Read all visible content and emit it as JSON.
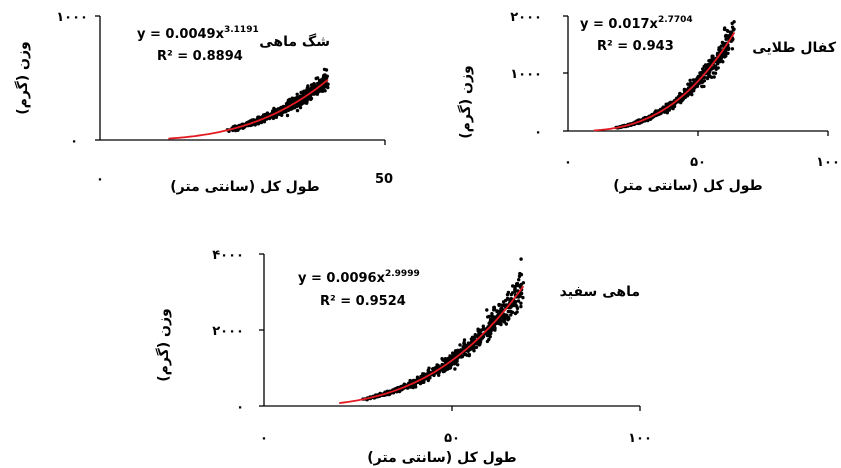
{
  "chart_data": [
    {
      "type": "scatter",
      "title": "شگ ماهی",
      "xlabel": "طول کل (سانتی متر)",
      "ylabel": "وزن (گرم)",
      "xlim": [
        0,
        50
      ],
      "ylim": [
        0,
        1000
      ],
      "x_ticks": [
        "۰",
        "50"
      ],
      "y_ticks": [
        "۰",
        "۱۰۰۰"
      ],
      "equation": "y = 0.0049x",
      "exponent": "3.1191",
      "r2": "R² = 0.8894",
      "fit": {
        "a": 0.0049,
        "b": 3.1191,
        "x_range": [
          12,
          40
        ]
      },
      "scatter_range": [
        20,
        40
      ],
      "series_color": "#000000",
      "fit_color": "#e31b23"
    },
    {
      "type": "scatter",
      "title": "کفال طلایی",
      "xlabel": "طول کل (سانتی متر)",
      "ylabel": "وزن (گرم)",
      "xlim": [
        0,
        100
      ],
      "ylim": [
        0,
        2000
      ],
      "x_ticks": [
        "۰",
        "۵۰",
        "۱۰۰"
      ],
      "y_ticks": [
        "۰",
        "۱۰۰۰",
        "۲۰۰۰"
      ],
      "equation": "y = 0.017x",
      "exponent": "2.7704",
      "r2": "R² = 0.943",
      "fit": {
        "a": 0.017,
        "b": 2.7704,
        "x_range": [
          10,
          64
        ]
      },
      "scatter_range": [
        10,
        64
      ],
      "series_color": "#000000",
      "fit_color": "#e31b23"
    },
    {
      "type": "scatter",
      "title": "ماهی سفید",
      "xlabel": "طول کل (سانتی متر)",
      "ylabel": "وزن (گرم)",
      "xlim": [
        0,
        100
      ],
      "ylim": [
        0,
        4000
      ],
      "x_ticks": [
        "۰",
        "۵۰",
        "۱۰۰"
      ],
      "y_ticks": [
        "۰",
        "۲۰۰۰",
        "۴۰۰۰"
      ],
      "equation": "y = 0.0096x",
      "exponent": "2.9999",
      "r2": "R² = 0.9524",
      "fit": {
        "a": 0.0096,
        "b": 2.9999,
        "x_range": [
          20,
          69
        ]
      },
      "scatter_range": [
        20,
        69
      ],
      "series_color": "#000000",
      "fit_color": "#e31b23"
    }
  ]
}
